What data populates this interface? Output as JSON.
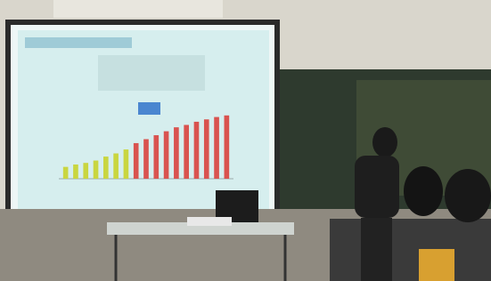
{
  "slide_chart": {
    "values": [
      15,
      18,
      20,
      23,
      28,
      32,
      37,
      45,
      50,
      55,
      60,
      65,
      68,
      72,
      75,
      78,
      80
    ],
    "colors": [
      "#c9d640",
      "#c9d640",
      "#c9d640",
      "#c9d640",
      "#c9d640",
      "#c9d640",
      "#c9d640",
      "#d9534f",
      "#d9534f",
      "#d9534f",
      "#d9534f",
      "#d9534f",
      "#d9534f",
      "#d9534f",
      "#d9534f",
      "#d9534f",
      "#d9534f"
    ],
    "ylim": [
      0,
      100
    ]
  }
}
